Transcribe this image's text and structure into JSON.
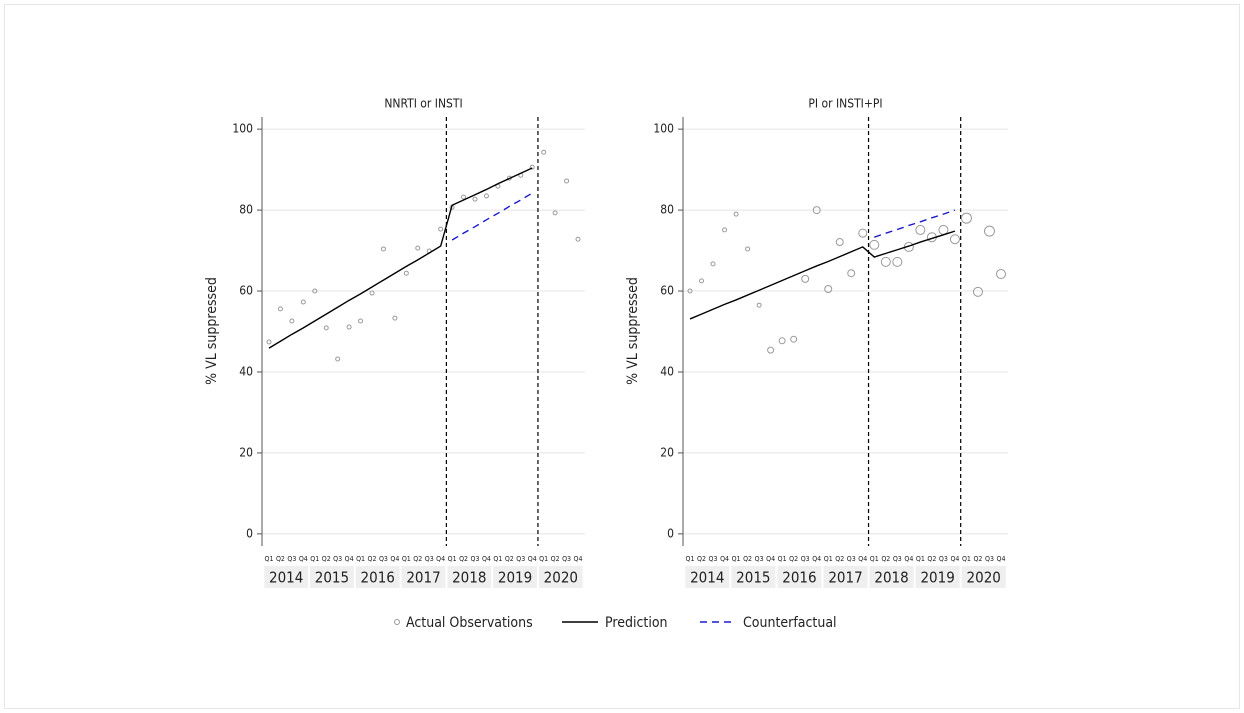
{
  "chart_data": [
    {
      "type": "line",
      "title": "NNRTI or INSTI",
      "y_label": "% VL suppressed",
      "categories": [
        "Q1",
        "Q2",
        "Q3",
        "Q4",
        "Q1",
        "Q2",
        "Q3",
        "Q4",
        "Q1",
        "Q2",
        "Q3",
        "Q4",
        "Q1",
        "Q2",
        "Q3",
        "Q4",
        "Q1",
        "Q2",
        "Q3",
        "Q4",
        "Q1",
        "Q2",
        "Q3",
        "Q4",
        "Q1",
        "Q2",
        "Q3",
        "Q4"
      ],
      "groups": [
        "2014",
        "2015",
        "2016",
        "2017",
        "2018",
        "2019",
        "2020"
      ],
      "ylim": [
        -3,
        103
      ],
      "yticks": [
        0,
        20,
        40,
        60,
        80,
        100
      ],
      "grid": true,
      "vlines": [
        15.5,
        23.5
      ],
      "series": [
        {
          "name": "Actual Observations",
          "mode": "markers",
          "color": "#999999",
          "marker_size": 2,
          "values": [
            47.4,
            55.6,
            52.6,
            57.3,
            60,
            50.9,
            43.2,
            51.1,
            52.6,
            59.5,
            70.4,
            53.3,
            64.4,
            70.6,
            69.9,
            75.3,
            80.7,
            83.2,
            82.7,
            83.5,
            85.9,
            87.9,
            88.6,
            90.6,
            94.3,
            79.3,
            87.2,
            72.8
          ]
        },
        {
          "name": "Prediction",
          "mode": "line",
          "color": "#000000",
          "dash": false,
          "values": [
            45.9,
            47.6,
            49.3,
            50.9,
            52.6,
            54.3,
            56.0,
            57.7,
            59.3,
            61.0,
            62.7,
            64.4,
            66.1,
            67.7,
            69.4,
            71.1,
            81.2,
            82.5,
            83.8,
            85.1,
            86.5,
            87.8,
            89.1,
            90.4,
            null,
            null,
            null,
            null
          ]
        },
        {
          "name": "Counterfactual",
          "mode": "line",
          "color": "#1a1ad0",
          "dash": true,
          "values": [
            null,
            null,
            null,
            null,
            null,
            null,
            null,
            null,
            null,
            null,
            null,
            null,
            null,
            null,
            null,
            null,
            72.6,
            74.3,
            75.9,
            77.6,
            79.2,
            80.9,
            82.5,
            84.2,
            null,
            null,
            null,
            null
          ]
        }
      ]
    },
    {
      "type": "line",
      "title": "PI or INSTI+PI",
      "y_label": "% VL suppressed",
      "categories": [
        "Q1",
        "Q2",
        "Q3",
        "Q4",
        "Q1",
        "Q2",
        "Q3",
        "Q4",
        "Q1",
        "Q2",
        "Q3",
        "Q4",
        "Q1",
        "Q2",
        "Q3",
        "Q4",
        "Q1",
        "Q2",
        "Q3",
        "Q4",
        "Q1",
        "Q2",
        "Q3",
        "Q4",
        "Q1",
        "Q2",
        "Q3",
        "Q4"
      ],
      "groups": [
        "2014",
        "2015",
        "2016",
        "2017",
        "2018",
        "2019",
        "2020"
      ],
      "ylim": [
        -3,
        103
      ],
      "yticks": [
        0,
        20,
        40,
        60,
        80,
        100
      ],
      "grid": true,
      "vlines": [
        15.5,
        23.5
      ],
      "series": [
        {
          "name": "Actual Observations",
          "mode": "markers",
          "color": "#999999",
          "values": [
            60,
            62.5,
            66.7,
            75.1,
            79,
            70.4,
            56.5,
            45.4,
            47.7,
            48.1,
            63,
            80,
            60.5,
            72.1,
            64.4,
            74.3,
            71.4,
            67.2,
            67.2,
            70.9,
            75.1,
            73.3,
            75.1,
            72.8,
            78,
            59.8,
            74.8,
            64.2
          ],
          "sizes": [
            2,
            2,
            2,
            2,
            2,
            2,
            2,
            3,
            3,
            3,
            3.5,
            3.5,
            3.5,
            3.5,
            3.5,
            4,
            4.5,
            4.5,
            4.5,
            4.5,
            4.5,
            4.5,
            4.5,
            4.5,
            5,
            4.5,
            5,
            4.5
          ]
        },
        {
          "name": "Prediction",
          "mode": "line",
          "color": "#000000",
          "dash": false,
          "values": [
            53.1,
            54.3,
            55.5,
            56.7,
            57.8,
            59.0,
            60.2,
            61.4,
            62.6,
            63.8,
            65.0,
            66.2,
            67.3,
            68.5,
            69.7,
            70.9,
            68.4,
            69.3,
            70.2,
            71.1,
            72.1,
            73.0,
            73.9,
            74.8,
            null,
            null,
            null,
            null
          ]
        },
        {
          "name": "Counterfactual",
          "mode": "line",
          "color": "#1a1ad0",
          "dash": true,
          "values": [
            null,
            null,
            null,
            null,
            null,
            null,
            null,
            null,
            null,
            null,
            null,
            null,
            null,
            null,
            null,
            null,
            73.3,
            74.3,
            75.2,
            76.2,
            77.1,
            78.1,
            79.0,
            80.0,
            null,
            null,
            null,
            null
          ]
        }
      ]
    }
  ]
}
